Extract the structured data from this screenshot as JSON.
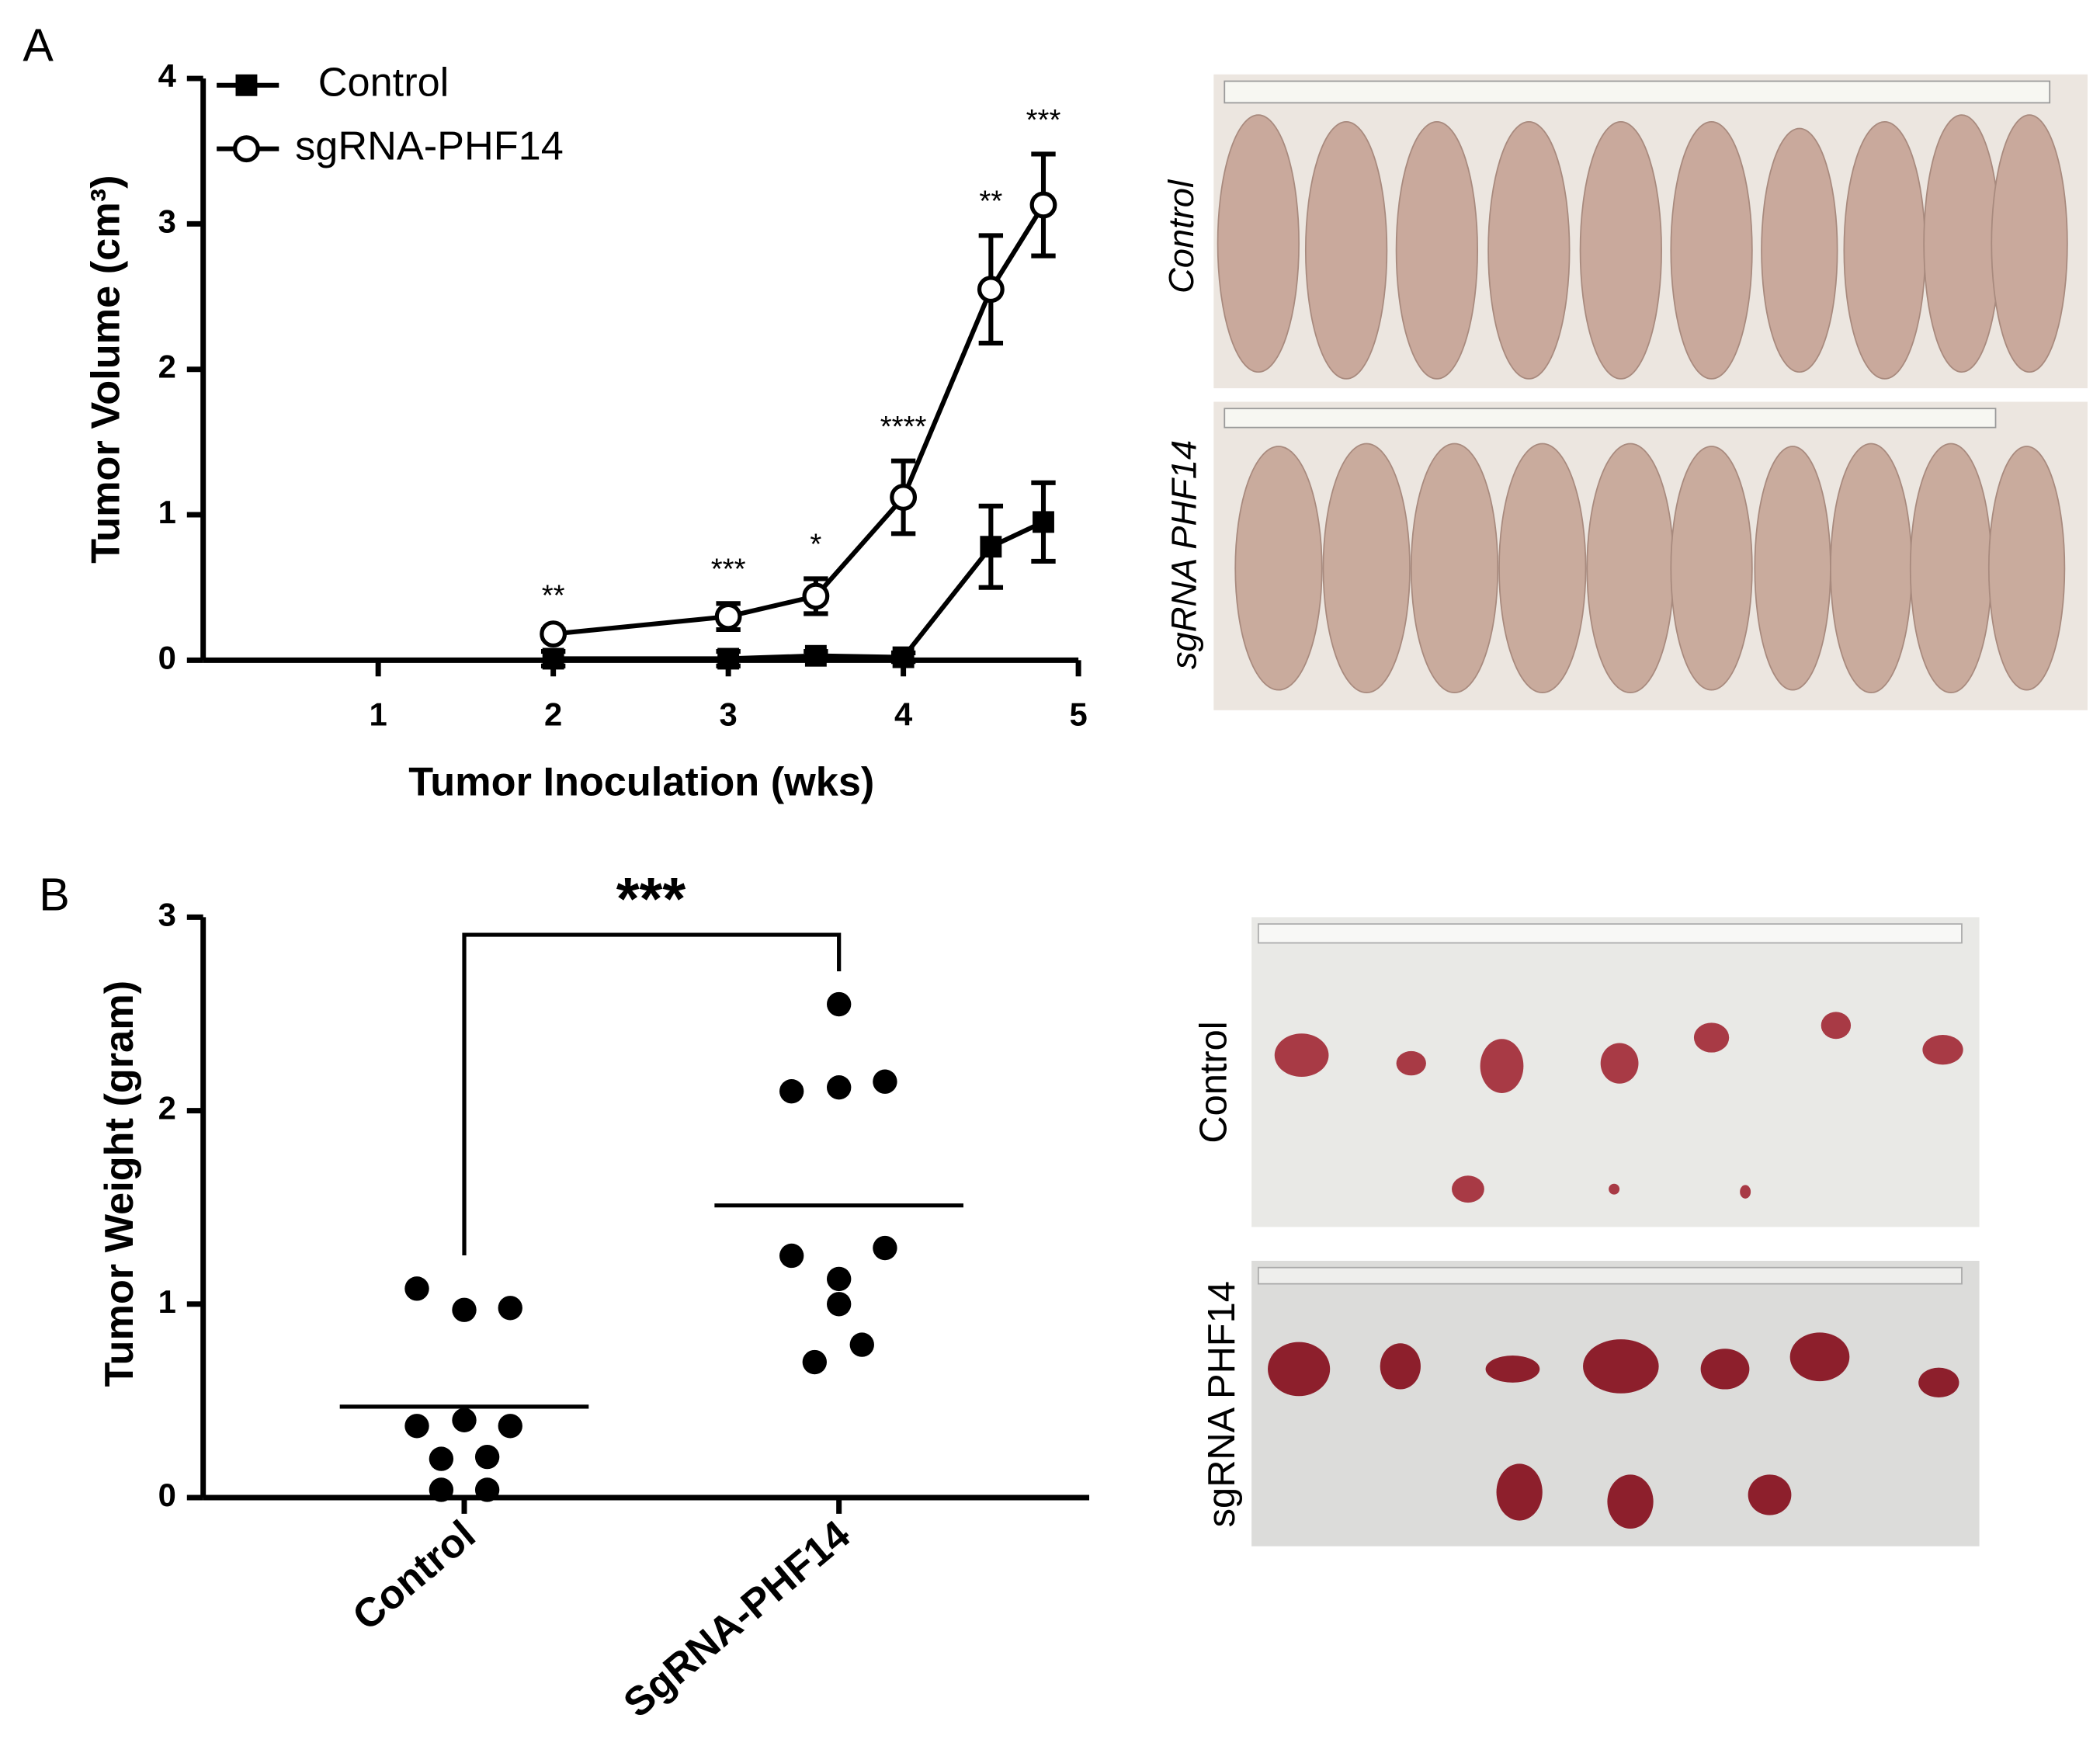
{
  "panels": [
    "A",
    "B"
  ],
  "chart_data": [
    {
      "type": "line",
      "xlabel": "Tumor Inoculation (wks)",
      "ylabel": "Tumor Volume (cm³)",
      "xlim": [
        0,
        5
      ],
      "xticks": [
        1,
        2,
        3,
        4,
        5
      ],
      "ylim": [
        0,
        4
      ],
      "yticks": [
        0,
        1,
        2,
        3,
        4
      ],
      "legend": "upper left",
      "series": [
        {
          "name": "Control",
          "color": "#000000",
          "marker": "square",
          "x": [
            2,
            3,
            3.5,
            4,
            4.5,
            4.8
          ],
          "values": [
            0.01,
            0.01,
            0.03,
            0.02,
            0.78,
            0.95
          ],
          "errors": [
            0.05,
            0.05,
            0.03,
            0.03,
            0.28,
            0.27
          ]
        },
        {
          "name": "sgRNA-PHF14",
          "color": "#000000",
          "marker": "open-circle",
          "x": [
            2,
            3,
            3.5,
            4,
            4.5,
            4.8
          ],
          "values": [
            0.18,
            0.3,
            0.44,
            1.12,
            2.55,
            3.13
          ],
          "errors": [
            0.03,
            0.09,
            0.12,
            0.25,
            0.37,
            0.35
          ]
        }
      ],
      "significance": [
        "**",
        "***",
        "*",
        "****",
        "**",
        "***"
      ]
    },
    {
      "type": "dot",
      "ylabel": "Tumor Weight (gram)",
      "categories": [
        "Control",
        "SgRNA-PHF14"
      ],
      "ylim": [
        0,
        3
      ],
      "yticks": [
        0,
        1,
        2,
        3
      ],
      "color": "#000000",
      "groups": [
        {
          "values": [
            1.08,
            0.97,
            0.98,
            0.37,
            0.4,
            0.37,
            0.2,
            0.21,
            0.04,
            0.04
          ],
          "mean": 0.47
        },
        {
          "values": [
            2.55,
            2.1,
            2.12,
            2.15,
            1.25,
            1.29,
            1.13,
            1.0,
            0.79,
            0.7
          ],
          "mean": 1.51
        }
      ],
      "significance": "***"
    }
  ],
  "photos": [
    {
      "label": "Control"
    },
    {
      "label": "sgRNA PHF14"
    },
    {
      "label": "Control"
    },
    {
      "label": "sgRNA PHF14"
    }
  ]
}
